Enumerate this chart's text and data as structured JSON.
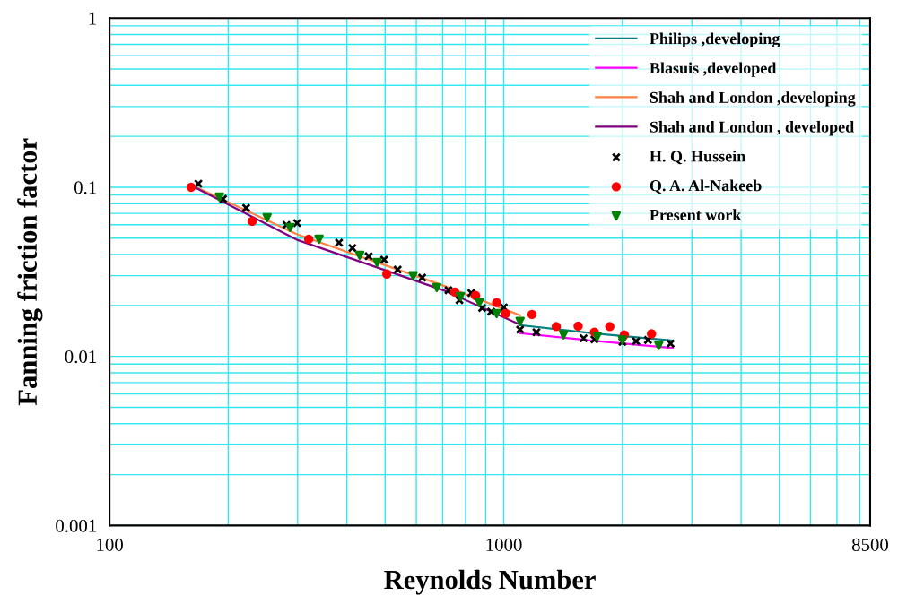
{
  "chart_data": {
    "type": "line",
    "xlabel": "Reynolds Number",
    "ylabel": "Fanning friction factor",
    "log": "xy",
    "xlim": [
      100,
      8500
    ],
    "xticks": [
      100,
      1000,
      8500
    ],
    "ylim": [
      0.001,
      1
    ],
    "yticks": [
      0.001,
      0.01,
      0.1,
      1
    ],
    "grid": true,
    "legend": "top right",
    "series": [
      {
        "name": "Philips ,developing",
        "color": "#008080",
        "marker": "none",
        "x": [
          1100,
          1726,
          2680
        ],
        "values": [
          0.0153,
          0.0136,
          0.0124
        ]
      },
      {
        "name": "Blasuis ,developed",
        "color": "#ff00ff",
        "marker": "none",
        "x": [
          1100,
          1726,
          2680
        ],
        "values": [
          0.0137,
          0.0123,
          0.0112
        ]
      },
      {
        "name": "Shah and London ,developing",
        "color": "#ff8040",
        "marker": "none",
        "x": [
          166,
          300,
          713,
          1100
        ],
        "values": [
          0.1,
          0.0525,
          0.0259,
          0.0175
        ]
      },
      {
        "name": "Shah and London , developed",
        "color": "#800080",
        "marker": "none",
        "x": [
          166,
          300,
          713,
          1100
        ],
        "values": [
          0.0986,
          0.0487,
          0.0243,
          0.0154
        ]
      },
      {
        "name": "H. Q. Hussein",
        "type": "scatter",
        "color": "#000000",
        "marker": "cross",
        "x": [
          168,
          194,
          222,
          281,
          299,
          382,
          413,
          454,
          497,
          538,
          621,
          724,
          772,
          827,
          881,
          929,
          1000,
          1100,
          1210,
          1594,
          1698,
          2000,
          2166,
          2321,
          2649
        ],
        "values": [
          0.105,
          0.0853,
          0.0755,
          0.0599,
          0.0614,
          0.047,
          0.0437,
          0.0391,
          0.0373,
          0.0326,
          0.0292,
          0.0246,
          0.0215,
          0.0237,
          0.0193,
          0.0184,
          0.0195,
          0.0144,
          0.0139,
          0.0128,
          0.0126,
          0.0122,
          0.0123,
          0.0125,
          0.0119
        ]
      },
      {
        "name": "Q. A. Al-Nakeeb",
        "type": "scatter",
        "color": "#ff0000",
        "marker": "circle",
        "x": [
          161,
          230,
          320,
          505,
          751,
          848,
          959,
          1011,
          1179,
          1359,
          1544,
          1698,
          1858,
          2022,
          2370
        ],
        "values": [
          0.1,
          0.0629,
          0.0493,
          0.0307,
          0.024,
          0.0229,
          0.0208,
          0.0179,
          0.0177,
          0.015,
          0.0151,
          0.0139,
          0.015,
          0.0134,
          0.0136
        ]
      },
      {
        "name": "Present work",
        "type": "scatter",
        "color": "#008000",
        "marker": "triangle",
        "x": [
          190,
          251,
          287,
          340,
          431,
          477,
          589,
          676,
          776,
          867,
          959,
          1100,
          1418,
          1726,
          2000,
          2473
        ],
        "values": [
          0.0875,
          0.0661,
          0.0578,
          0.0493,
          0.0396,
          0.0359,
          0.03,
          0.0255,
          0.0226,
          0.0208,
          0.0179,
          0.0161,
          0.0134,
          0.0131,
          0.0125,
          0.0116
        ]
      }
    ]
  }
}
